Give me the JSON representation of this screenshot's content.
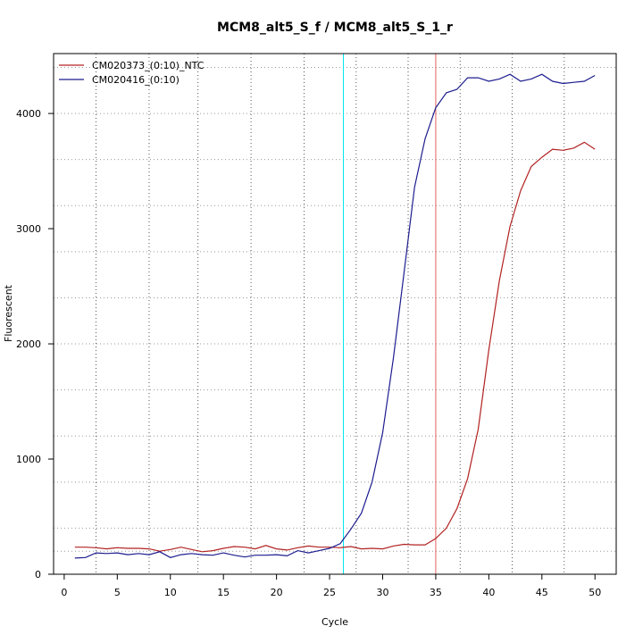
{
  "chart_data": {
    "type": "line",
    "title": "MCM8_alt5_S_f / MCM8_alt5_S_1_r",
    "xlabel": "Cycle",
    "ylabel": "Fluorescent",
    "xlim": [
      -1,
      52
    ],
    "ylim": [
      0,
      4520
    ],
    "x_ticks": [
      0,
      5,
      10,
      15,
      20,
      25,
      30,
      35,
      40,
      45,
      50
    ],
    "y_ticks": [
      0,
      1000,
      2000,
      3000,
      4000
    ],
    "x_tick_labels": [
      "0",
      "5",
      "10",
      "15",
      "20",
      "25",
      "30",
      "35",
      "40",
      "45",
      "50"
    ],
    "y_tick_labels": [
      "0",
      "1000",
      "2000",
      "3000",
      "4000"
    ],
    "vgrid": [
      3,
      8,
      12.6,
      17.6,
      22.6,
      27.5,
      32.4,
      37.3,
      42.2,
      47.1
    ],
    "hgrid": [
      200,
      400,
      800,
      1200,
      1600,
      2000,
      2400,
      2800,
      3200,
      3600,
      4000,
      4400
    ],
    "vlines": [
      {
        "x": 26.3,
        "color": "#00e5ee"
      },
      {
        "x": 35.0,
        "color": "#e06060"
      }
    ],
    "legend_position": "top-left",
    "x": [
      1,
      2,
      3,
      4,
      5,
      6,
      7,
      8,
      9,
      10,
      11,
      12,
      13,
      14,
      15,
      16,
      17,
      18,
      19,
      20,
      21,
      22,
      23,
      24,
      25,
      26,
      27,
      28,
      29,
      30,
      31,
      32,
      33,
      34,
      35,
      36,
      37,
      38,
      39,
      40,
      41,
      42,
      43,
      44,
      45,
      46,
      47,
      48,
      49,
      50
    ],
    "series": [
      {
        "name": "CM020373_(0:10)_NTC",
        "color": "#b22222",
        "values": [
          235,
          235,
          230,
          220,
          230,
          225,
          225,
          220,
          200,
          215,
          235,
          215,
          195,
          205,
          225,
          240,
          235,
          220,
          250,
          220,
          210,
          230,
          245,
          235,
          235,
          230,
          240,
          220,
          225,
          220,
          245,
          260,
          255,
          255,
          310,
          400,
          570,
          830,
          1260,
          1950,
          2550,
          3020,
          3330,
          3540,
          3620,
          3690,
          3680,
          3700,
          3750,
          3690
        ]
      },
      {
        "name": "CM020416_(0:10)",
        "color": "#1c1c8f",
        "values": [
          140,
          145,
          185,
          180,
          185,
          170,
          180,
          170,
          195,
          145,
          170,
          180,
          170,
          165,
          185,
          165,
          150,
          165,
          165,
          170,
          160,
          205,
          185,
          205,
          225,
          265,
          390,
          530,
          800,
          1230,
          1870,
          2610,
          3360,
          3780,
          4050,
          4180,
          4210,
          4310,
          4310,
          4280,
          4300,
          4340,
          4280,
          4300,
          4340,
          4280,
          4260,
          4270,
          4280,
          4330
        ]
      }
    ]
  }
}
